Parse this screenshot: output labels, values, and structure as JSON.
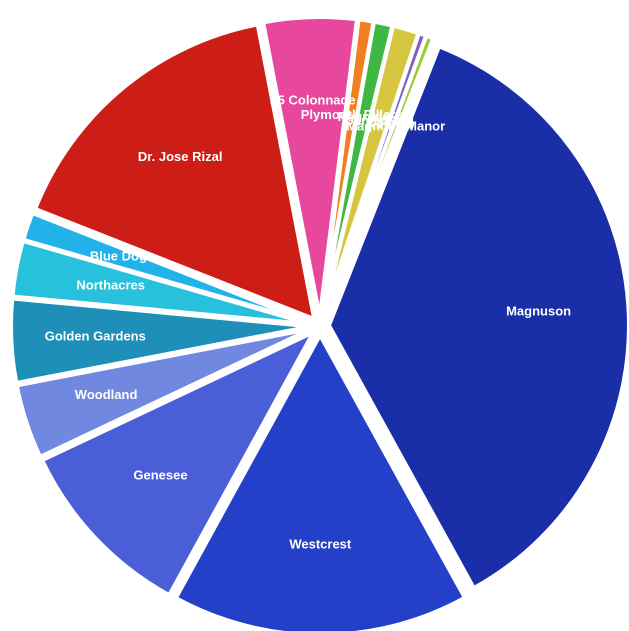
{
  "chart_data": {
    "type": "pie",
    "title": "",
    "legend": "none",
    "slices": [
      {
        "label": "Magnuson",
        "value": 36.0,
        "color": "#1a2ea8"
      },
      {
        "label": "Westcrest",
        "value": 16.0,
        "color": "#2440c8"
      },
      {
        "label": "Genesee",
        "value": 10.0,
        "color": "#4a5ed8"
      },
      {
        "label": "Woodland",
        "value": 4.0,
        "color": "#7088e0"
      },
      {
        "label": "Golden Gardens",
        "value": 4.5,
        "color": "#1d8fb8"
      },
      {
        "label": "Northacres",
        "value": 3.0,
        "color": "#27c1de"
      },
      {
        "label": "Blue Dog",
        "value": 1.5,
        "color": "#22b2ea"
      },
      {
        "label": "Dr. Jose Rizal",
        "value": 16.0,
        "color": "#cc1e17"
      },
      {
        "label": "I-5 Colonnade",
        "value": 5.0,
        "color": "#e8479e"
      },
      {
        "label": "Plymouth Pillars",
        "value": 0.8,
        "color": "#f07f22"
      },
      {
        "label": "Regrade",
        "value": 1.0,
        "color": "#3eb842"
      },
      {
        "label": "Denny/SLU",
        "value": 1.4,
        "color": "#d6c63f"
      },
      {
        "label": "Kinnear",
        "value": 0.4,
        "color": "#7e62c4"
      },
      {
        "label": "Magnolia Manor",
        "value": 0.4,
        "color": "#9acd3a"
      }
    ]
  }
}
